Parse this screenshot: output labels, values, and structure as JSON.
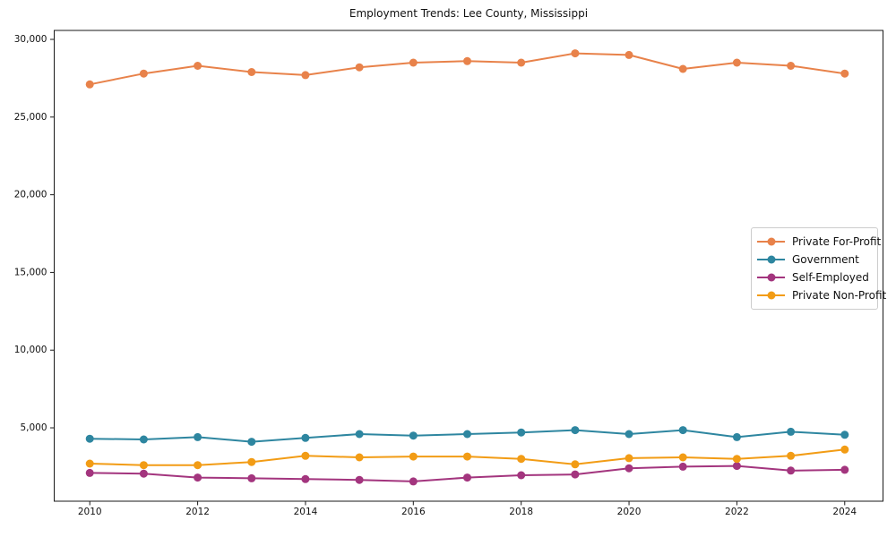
{
  "chart_data": {
    "type": "line",
    "title": "Employment Trends: Lee County, Mississippi",
    "xlabel": "",
    "ylabel": "",
    "x": [
      2010,
      2011,
      2012,
      2013,
      2014,
      2015,
      2016,
      2017,
      2018,
      2019,
      2020,
      2021,
      2022,
      2023,
      2024
    ],
    "series": [
      {
        "name": "Private For-Profit",
        "color": "#e8824a",
        "values": [
          27100,
          27800,
          28300,
          27900,
          27700,
          28200,
          28500,
          28600,
          28500,
          29100,
          29000,
          28100,
          28500,
          28300,
          27800
        ]
      },
      {
        "name": "Government",
        "color": "#2e86a0",
        "values": [
          4300,
          4250,
          4400,
          4100,
          4350,
          4600,
          4500,
          4600,
          4700,
          4850,
          4600,
          4850,
          4400,
          4750,
          4550
        ]
      },
      {
        "name": "Self-Employed",
        "color": "#a3357e",
        "values": [
          2100,
          2050,
          1800,
          1750,
          1700,
          1650,
          1550,
          1800,
          1950,
          2000,
          2400,
          2500,
          2550,
          2250,
          2300
        ]
      },
      {
        "name": "Private Non-Profit",
        "color": "#f29c15",
        "values": [
          2700,
          2600,
          2600,
          2800,
          3200,
          3100,
          3150,
          3150,
          3000,
          2650,
          3050,
          3100,
          3000,
          3200,
          3600
        ]
      }
    ],
    "xticks": [
      2010,
      2012,
      2014,
      2016,
      2018,
      2020,
      2022,
      2024
    ],
    "xtick_labels": [
      "2010",
      "2012",
      "2014",
      "2016",
      "2018",
      "2020",
      "2022",
      "2024"
    ],
    "yticks": [
      5000,
      10000,
      15000,
      20000,
      25000,
      30000
    ],
    "ytick_labels": [
      "5,000",
      "10,000",
      "15,000",
      "20,000",
      "25,000",
      "30,000"
    ],
    "xlim": [
      2009.34,
      2024.71
    ],
    "ylim": [
      278,
      30576
    ],
    "grid": false,
    "legend_position": "center-right",
    "marker": "circle"
  }
}
